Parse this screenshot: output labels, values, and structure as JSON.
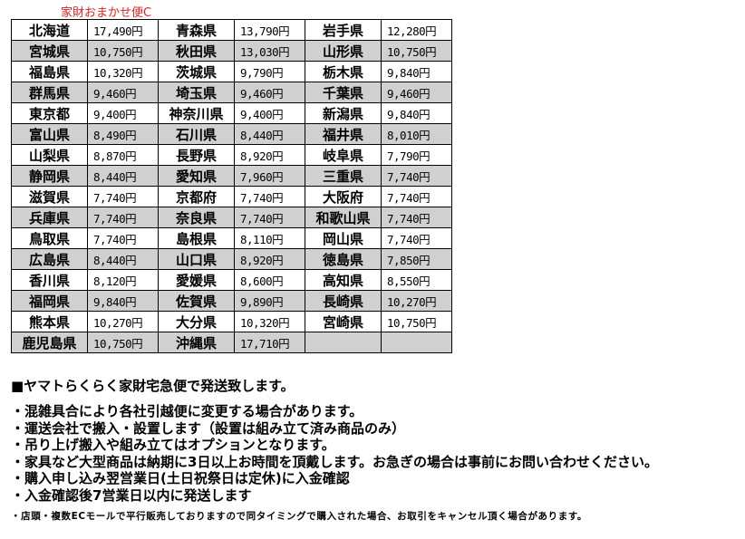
{
  "title": "家財おまかせ便C",
  "rows": [
    [
      [
        "北海道",
        "17,490円"
      ],
      [
        "青森県",
        "13,790円"
      ],
      [
        "岩手県",
        "12,280円"
      ]
    ],
    [
      [
        "宮城県",
        "10,750円"
      ],
      [
        "秋田県",
        "13,030円"
      ],
      [
        "山形県",
        "10,750円"
      ]
    ],
    [
      [
        "福島県",
        "10,320円"
      ],
      [
        "茨城県",
        "9,790円"
      ],
      [
        "栃木県",
        "9,840円"
      ]
    ],
    [
      [
        "群馬県",
        "9,460円"
      ],
      [
        "埼玉県",
        "9,460円"
      ],
      [
        "千葉県",
        "9,460円"
      ]
    ],
    [
      [
        "東京都",
        "9,400円"
      ],
      [
        "神奈川県",
        "9,400円"
      ],
      [
        "新潟県",
        "9,840円"
      ]
    ],
    [
      [
        "富山県",
        "8,490円"
      ],
      [
        "石川県",
        "8,440円"
      ],
      [
        "福井県",
        "8,010円"
      ]
    ],
    [
      [
        "山梨県",
        "8,870円"
      ],
      [
        "長野県",
        "8,920円"
      ],
      [
        "岐阜県",
        "7,790円"
      ]
    ],
    [
      [
        "静岡県",
        "8,440円"
      ],
      [
        "愛知県",
        "7,960円"
      ],
      [
        "三重県",
        "7,740円"
      ]
    ],
    [
      [
        "滋賀県",
        "7,740円"
      ],
      [
        "京都府",
        "7,740円"
      ],
      [
        "大阪府",
        "7,740円"
      ]
    ],
    [
      [
        "兵庫県",
        "7,740円"
      ],
      [
        "奈良県",
        "7,740円"
      ],
      [
        "和歌山県",
        "7,740円"
      ]
    ],
    [
      [
        "鳥取県",
        "7,740円"
      ],
      [
        "島根県",
        "8,110円"
      ],
      [
        "岡山県",
        "7,740円"
      ]
    ],
    [
      [
        "広島県",
        "8,440円"
      ],
      [
        "山口県",
        "8,920円"
      ],
      [
        "徳島県",
        "7,850円"
      ]
    ],
    [
      [
        "香川県",
        "8,120円"
      ],
      [
        "愛媛県",
        "8,600円"
      ],
      [
        "高知県",
        "8,550円"
      ]
    ],
    [
      [
        "福岡県",
        "9,840円"
      ],
      [
        "佐賀県",
        "9,890円"
      ],
      [
        "長崎県",
        "10,270円"
      ]
    ],
    [
      [
        "熊本県",
        "10,270円"
      ],
      [
        "大分県",
        "10,320円"
      ],
      [
        "宮崎県",
        "10,750円"
      ]
    ],
    [
      [
        "鹿児島県",
        "10,750円"
      ],
      [
        "沖縄県",
        "17,710円"
      ],
      [
        "",
        ""
      ]
    ]
  ],
  "notes": {
    "heading": "■ヤマトらくらく家財宅急便で発送致します。",
    "lines": [
      "・混雑具合により各社引越便に変更する場合があります。",
      "・運送会社で搬入・設置します（設置は組み立て済み商品のみ）",
      "・吊り上げ搬入や組み立てはオプションとなります。",
      "・家具など大型商品は納期に3日以上お時間を頂戴します。お急ぎの場合は事前にお問い合わせください。",
      "・購入申し込み翌営業日(土日祝祭日は定休)に入金確認",
      "・入金確認後7営業日以内に発送します"
    ],
    "small": "・店頭・複数ECモールで平行販売しておりますので同タイミングで購入された場合、お取引をキャンセル頂く場合があります。"
  },
  "colors": {
    "title": "#e02020",
    "stripe": "#d0d0d0"
  }
}
